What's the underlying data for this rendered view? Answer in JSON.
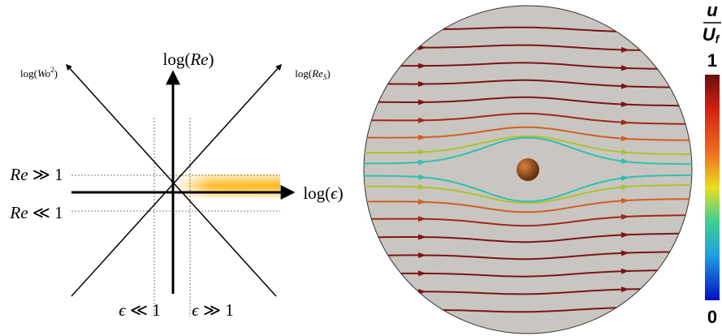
{
  "diagram": {
    "axes": {
      "re": {
        "pre": "log(",
        "var": "Re",
        "post": ")"
      },
      "wo": {
        "pre": "log(",
        "var": "Wo",
        "sup": "2",
        "post": ")"
      },
      "res": {
        "pre": "log(",
        "var": "Re",
        "sub": "S",
        "post": ")"
      },
      "eps": {
        "pre": "log(",
        "var": "ϵ",
        "post": ")"
      }
    },
    "regimes": {
      "re_high": {
        "var": "Re",
        "rel": " ≫ 1"
      },
      "re_low": {
        "var": "Re",
        "rel": " ≪ 1"
      },
      "eps_low": {
        "var": "ϵ",
        "rel": " ≪ 1"
      },
      "eps_high": {
        "var": "ϵ",
        "rel": " ≫ 1"
      }
    },
    "colorbar": {
      "num": "u",
      "den": "U",
      "den_sub": "f",
      "max": "1",
      "min": "0"
    }
  }
}
